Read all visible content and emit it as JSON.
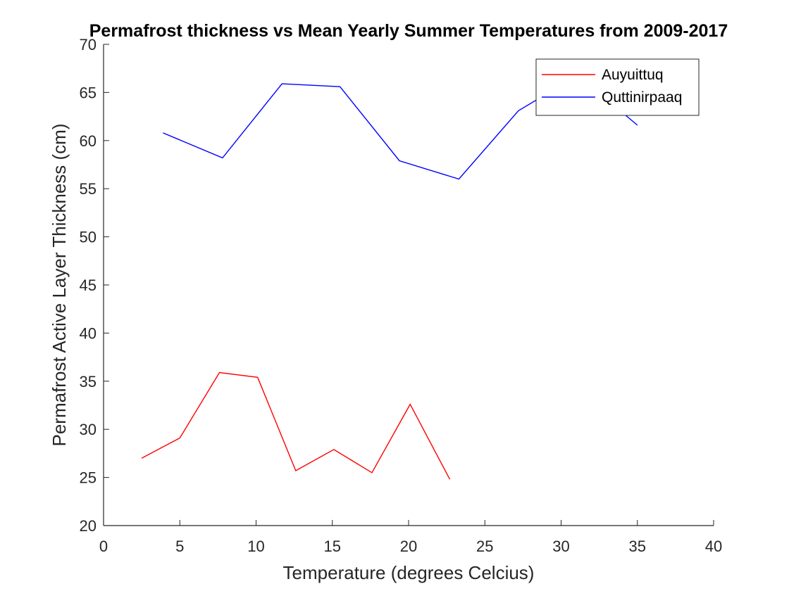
{
  "chart_data": {
    "type": "line",
    "title": "Permafrost thickness vs Mean Yearly Summer Temperatures from 2009-2017",
    "xlabel": "Temperature (degrees Celcius)",
    "ylabel": "Permafrost Active Layer Thickness (cm)",
    "xlim": [
      0,
      40
    ],
    "ylim": [
      20,
      70
    ],
    "xticks": [
      0,
      5,
      10,
      15,
      20,
      25,
      30,
      35,
      40
    ],
    "yticks": [
      20,
      25,
      30,
      35,
      40,
      45,
      50,
      55,
      60,
      65,
      70
    ],
    "grid": false,
    "legend_position": "top-right",
    "series": [
      {
        "name": "Auyuittuq",
        "color": "#ff0000",
        "x": [
          2.5,
          5.0,
          7.6,
          10.1,
          12.6,
          15.1,
          17.6,
          20.1,
          22.7
        ],
        "y": [
          27.0,
          29.1,
          35.9,
          35.4,
          25.7,
          27.9,
          25.5,
          32.6,
          24.8
        ]
      },
      {
        "name": "Quttinirpaaq",
        "color": "#0000ff",
        "x": [
          3.9,
          7.8,
          11.7,
          15.5,
          19.4,
          23.3,
          27.2,
          31.1,
          35.0
        ],
        "y": [
          60.8,
          58.2,
          65.9,
          65.6,
          57.9,
          56.0,
          63.1,
          66.8,
          61.6
        ]
      }
    ]
  }
}
